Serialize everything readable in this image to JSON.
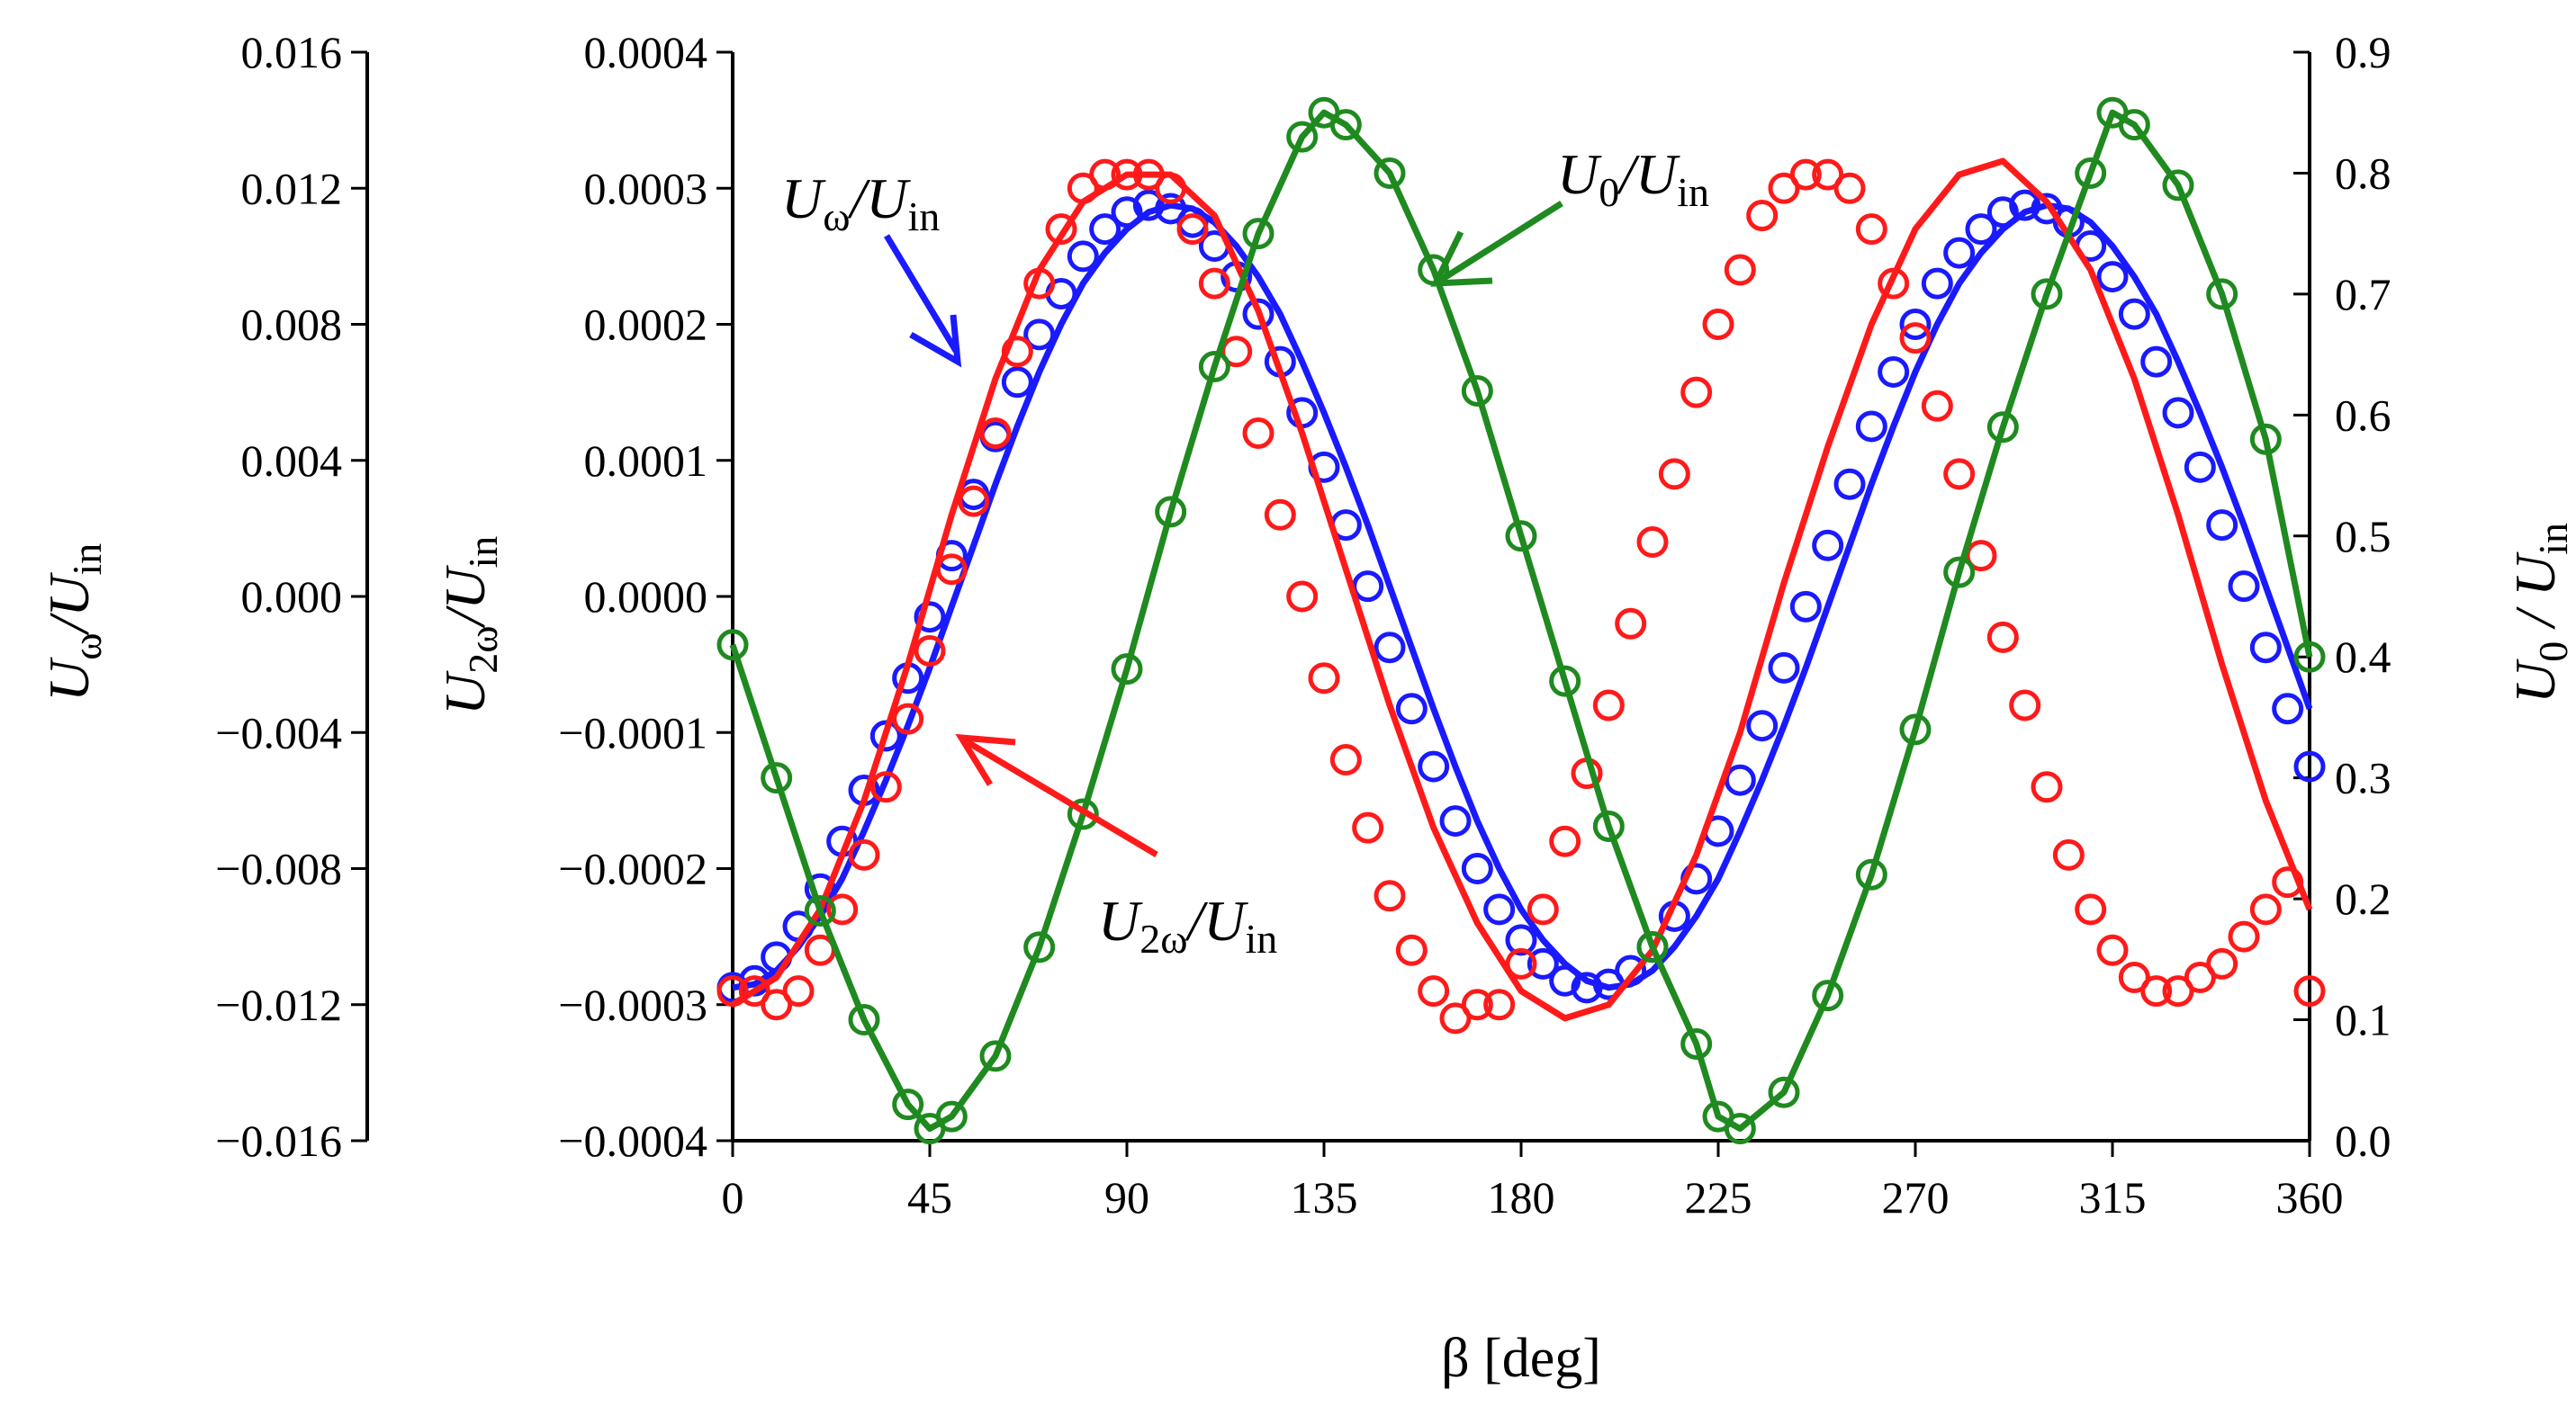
{
  "chart_data": {
    "type": "line",
    "title": "",
    "xlabel": "β [deg]",
    "xlim": [
      0,
      360
    ],
    "x_ticks": [
      "0",
      "45",
      "90",
      "135",
      "180",
      "225",
      "270",
      "315",
      "360"
    ],
    "axes": {
      "u_omega": {
        "label_main": "U",
        "label_sub": "ω",
        "label_rest": "/U",
        "label_rest_sub": "in",
        "ylim": [
          -0.016,
          0.016
        ],
        "ticks": [
          "0.016",
          "0.012",
          "0.008",
          "0.004",
          "0.000",
          "−0.004",
          "−0.008",
          "−0.012",
          "−0.016"
        ]
      },
      "u_2omega": {
        "label_main": "U",
        "label_sub": "2ω",
        "label_rest": "/U",
        "label_rest_sub": "in",
        "ylim": [
          -0.0004,
          0.0004
        ],
        "ticks": [
          "0.0004",
          "0.0003",
          "0.0002",
          "0.0001",
          "0.0000",
          "−0.0001",
          "−0.0002",
          "−0.0003",
          "−0.0004"
        ]
      },
      "u_0": {
        "label_main": "U",
        "label_sub": "0",
        "label_rest": " / U",
        "label_rest_sub": "in",
        "ylim": [
          0.0,
          0.9
        ],
        "ticks": [
          "0.9",
          "0.8",
          "0.7",
          "0.6",
          "0.5",
          "0.4",
          "0.3",
          "0.2",
          "0.1",
          "0.0"
        ]
      }
    },
    "series": [
      {
        "name": "Uω/Uin",
        "axis": "u_omega",
        "color": "#1a1aff",
        "annotation": {
          "main": "U",
          "sub1": "ω",
          "rest": "/U",
          "sub2": "in"
        },
        "x": [
          0,
          5,
          10,
          15,
          20,
          25,
          30,
          35,
          40,
          45,
          50,
          55,
          60,
          65,
          70,
          75,
          80,
          85,
          90,
          95,
          100,
          105,
          110,
          115,
          120,
          125,
          130,
          135,
          140,
          145,
          150,
          155,
          160,
          165,
          170,
          175,
          180,
          185,
          190,
          195,
          200,
          205,
          210,
          215,
          220,
          225,
          230,
          235,
          240,
          245,
          250,
          255,
          260,
          265,
          270,
          275,
          280,
          285,
          290,
          295,
          300,
          305,
          310,
          315,
          320,
          325,
          330,
          335,
          340,
          345,
          350,
          355,
          360
        ],
        "line": [
          -0.0115,
          -0.0114,
          -0.011,
          -0.0103,
          -0.0094,
          -0.0083,
          -0.0069,
          -0.0054,
          -0.0038,
          -0.0021,
          -0.0003,
          0.0015,
          0.0033,
          0.005,
          0.0066,
          0.008,
          0.0092,
          0.0101,
          0.0108,
          0.0113,
          0.0115,
          0.0114,
          0.011,
          0.0103,
          0.0094,
          0.0083,
          0.0069,
          0.0054,
          0.0038,
          0.0021,
          0.0003,
          -0.0015,
          -0.0033,
          -0.005,
          -0.0066,
          -0.008,
          -0.0092,
          -0.0101,
          -0.0108,
          -0.0113,
          -0.0115,
          -0.0114,
          -0.011,
          -0.0103,
          -0.0094,
          -0.0083,
          -0.0069,
          -0.0054,
          -0.0038,
          -0.0021,
          -0.0003,
          0.0015,
          0.0033,
          0.005,
          0.0066,
          0.008,
          0.0092,
          0.0101,
          0.0108,
          0.0113,
          0.0115,
          0.0114,
          0.011,
          0.0103,
          0.0094,
          0.0083,
          0.0069,
          0.0054,
          0.0038,
          0.0021,
          0.0003,
          -0.0015,
          -0.0033
        ],
        "points_x": [
          0,
          5,
          10,
          15,
          20,
          25,
          30,
          35,
          40,
          45,
          50,
          55,
          60,
          65,
          70,
          75,
          80,
          85,
          90,
          95,
          100,
          105,
          110,
          115,
          120,
          125,
          130,
          135,
          140,
          145,
          150,
          155,
          160,
          165,
          170,
          175,
          180,
          185,
          190,
          195,
          200,
          205,
          210,
          215,
          220,
          225,
          230,
          235,
          240,
          245,
          250,
          255,
          260,
          265,
          270,
          275,
          280,
          285,
          290,
          295,
          300,
          305,
          310,
          315,
          320,
          325,
          330,
          335,
          340,
          345,
          350,
          355,
          360
        ],
        "points_y": [
          -0.0115,
          -0.0113,
          -0.0106,
          -0.0097,
          -0.0086,
          -0.0072,
          -0.0057,
          -0.0041,
          -0.0024,
          -0.0006,
          0.0012,
          0.003,
          0.0047,
          0.0063,
          0.0077,
          0.0089,
          0.01,
          0.0108,
          0.0113,
          0.0115,
          0.0114,
          0.011,
          0.0103,
          0.0094,
          0.0083,
          0.0069,
          0.0054,
          0.0038,
          0.0021,
          0.0003,
          -0.0015,
          -0.0033,
          -0.005,
          -0.0066,
          -0.008,
          -0.0092,
          -0.0101,
          -0.0108,
          -0.0113,
          -0.0115,
          -0.0114,
          -0.011,
          -0.0103,
          -0.0094,
          -0.0083,
          -0.0069,
          -0.0054,
          -0.0038,
          -0.0021,
          -0.0003,
          0.0015,
          0.0033,
          0.005,
          0.0066,
          0.008,
          0.0092,
          0.0101,
          0.0108,
          0.0113,
          0.0115,
          0.0114,
          0.011,
          0.0103,
          0.0094,
          0.0083,
          0.0069,
          0.0054,
          0.0038,
          0.0021,
          0.0003,
          -0.0015,
          -0.0033,
          -0.005
        ]
      },
      {
        "name": "U2ω/Uin",
        "axis": "u_2omega",
        "color": "#ff1a1a",
        "annotation": {
          "main": "U",
          "sub1": "2ω",
          "rest": "/U",
          "sub2": "in"
        },
        "x": [
          0,
          10,
          20,
          30,
          40,
          50,
          60,
          70,
          80,
          90,
          100,
          110,
          120,
          130,
          140,
          150,
          160,
          170,
          180,
          190,
          200,
          210,
          220,
          230,
          240,
          250,
          260,
          270,
          280,
          290,
          300,
          310,
          320,
          330,
          340,
          350,
          360
        ],
        "line": [
          -0.0003,
          -0.00028,
          -0.00023,
          -0.00015,
          -5e-05,
          6e-05,
          0.00016,
          0.00024,
          0.00029,
          0.00031,
          0.00031,
          0.00028,
          0.00021,
          0.00012,
          2e-05,
          -8e-05,
          -0.00017,
          -0.00024,
          -0.00029,
          -0.00031,
          -0.0003,
          -0.00026,
          -0.00019,
          -0.0001,
          1e-05,
          0.00011,
          0.0002,
          0.00027,
          0.00031,
          0.00032,
          0.00029,
          0.00024,
          0.00016,
          6e-05,
          -5e-05,
          -0.00015,
          -0.00023
        ],
        "points_x": [
          0,
          5,
          10,
          15,
          20,
          25,
          30,
          35,
          40,
          45,
          50,
          55,
          60,
          65,
          70,
          75,
          80,
          85,
          90,
          95,
          100,
          105,
          110,
          115,
          120,
          125,
          130,
          135,
          140,
          145,
          150,
          155,
          160,
          165,
          170,
          175,
          180,
          185,
          190,
          195,
          200,
          205,
          210,
          215,
          220,
          225,
          230,
          235,
          240,
          245,
          250,
          255,
          260,
          265,
          270,
          275,
          280,
          285,
          290,
          295,
          300,
          305,
          310,
          315,
          320,
          325,
          330,
          335,
          340,
          345,
          350,
          355,
          360
        ],
        "points_y": [
          -0.00029,
          -0.00029,
          -0.0003,
          -0.00029,
          -0.00026,
          -0.00023,
          -0.00019,
          -0.00014,
          -9e-05,
          -4e-05,
          2e-05,
          7e-05,
          0.00012,
          0.00018,
          0.00023,
          0.00027,
          0.0003,
          0.00031,
          0.00031,
          0.00031,
          0.0003,
          0.00027,
          0.00023,
          0.00018,
          0.00012,
          6e-05,
          0.0,
          -6e-05,
          -0.00012,
          -0.00017,
          -0.00022,
          -0.00026,
          -0.00029,
          -0.00031,
          -0.0003,
          -0.0003,
          -0.00027,
          -0.00023,
          -0.00018,
          -0.00013,
          -8e-05,
          -2e-05,
          4e-05,
          9e-05,
          0.00015,
          0.0002,
          0.00024,
          0.00028,
          0.0003,
          0.00031,
          0.00031,
          0.0003,
          0.00027,
          0.00023,
          0.00019,
          0.00014,
          9e-05,
          3e-05,
          -3e-05,
          -8e-05,
          -0.00014,
          -0.00019,
          -0.00023,
          -0.00026,
          -0.00028,
          -0.00029,
          -0.00029,
          -0.00028,
          -0.00027,
          -0.00025,
          -0.00023,
          -0.00021,
          -0.00029
        ]
      },
      {
        "name": "U0/Uin",
        "axis": "u_0",
        "color": "#1f8a1f",
        "annotation": {
          "main": "U",
          "sub1": "0",
          "rest": "/U",
          "sub2": "in"
        },
        "x": [
          0,
          10,
          20,
          30,
          40,
          45,
          50,
          60,
          70,
          80,
          90,
          100,
          110,
          120,
          130,
          135,
          140,
          150,
          160,
          170,
          180,
          190,
          200,
          210,
          220,
          225,
          230,
          240,
          250,
          260,
          270,
          280,
          290,
          300,
          310,
          315,
          320,
          330,
          340,
          350,
          360
        ],
        "line": [
          0.41,
          0.3,
          0.19,
          0.1,
          0.03,
          0.01,
          0.02,
          0.07,
          0.16,
          0.27,
          0.39,
          0.52,
          0.64,
          0.75,
          0.83,
          0.85,
          0.84,
          0.8,
          0.72,
          0.62,
          0.5,
          0.38,
          0.26,
          0.16,
          0.08,
          0.02,
          0.01,
          0.04,
          0.12,
          0.22,
          0.34,
          0.47,
          0.59,
          0.7,
          0.8,
          0.85,
          0.84,
          0.79,
          0.7,
          0.58,
          0.4
        ]
      }
    ]
  }
}
